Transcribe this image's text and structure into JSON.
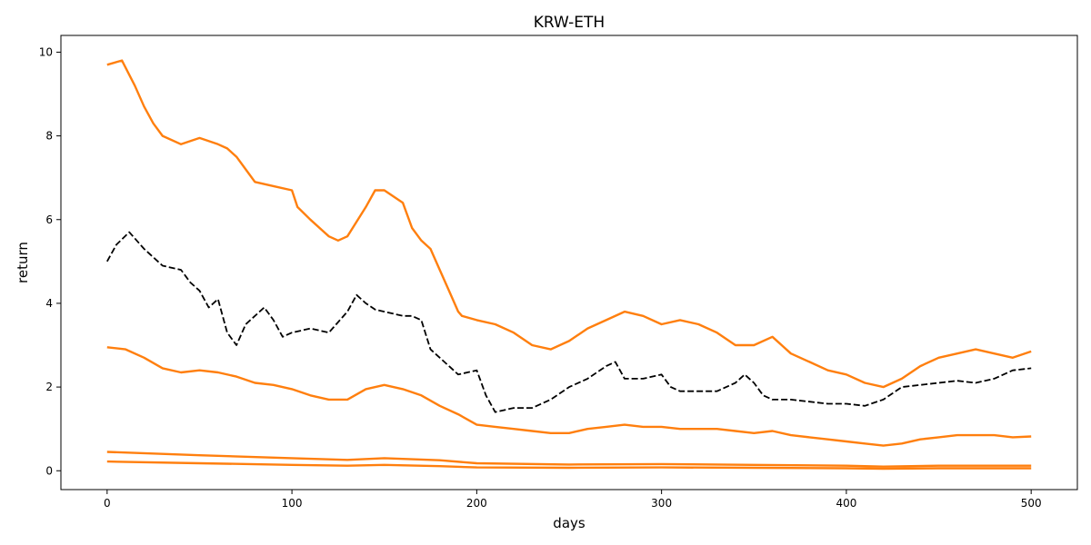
{
  "chart_data": {
    "type": "line",
    "title": "KRW-ETH",
    "xlabel": "days",
    "ylabel": "return",
    "xlim": [
      -25,
      525
    ],
    "ylim": [
      -0.45,
      10.4
    ],
    "xticks": [
      0,
      100,
      200,
      300,
      400,
      500
    ],
    "yticks": [
      0,
      2,
      4,
      6,
      8,
      10
    ],
    "grid": false,
    "colors": {
      "band": "#ff7f0e",
      "center": "#000000"
    },
    "series": [
      {
        "style": "solid",
        "color": "#ff7f0e",
        "x": [
          0,
          8,
          15,
          20,
          25,
          30,
          40,
          50,
          60,
          65,
          70,
          75,
          80,
          90,
          100,
          103,
          110,
          120,
          125,
          130,
          140,
          145,
          150,
          160,
          165,
          170,
          175,
          180,
          185,
          190,
          192,
          200,
          210,
          220,
          230,
          240,
          250,
          260,
          270,
          280,
          290,
          300,
          310,
          320,
          330,
          340,
          350,
          360,
          370,
          380,
          390,
          400,
          410,
          420,
          430,
          440,
          450,
          460,
          470,
          480,
          490,
          500
        ],
        "y": [
          9.7,
          9.8,
          9.2,
          8.7,
          8.3,
          8.0,
          7.8,
          7.95,
          7.8,
          7.7,
          7.5,
          7.2,
          6.9,
          6.8,
          6.7,
          6.3,
          6.0,
          5.6,
          5.5,
          5.6,
          6.3,
          6.7,
          6.7,
          6.4,
          5.8,
          5.5,
          5.3,
          4.8,
          4.3,
          3.8,
          3.7,
          3.6,
          3.5,
          3.3,
          3.0,
          2.9,
          3.1,
          3.4,
          3.6,
          3.8,
          3.7,
          3.5,
          3.6,
          3.5,
          3.3,
          3.0,
          3.0,
          3.2,
          2.8,
          2.6,
          2.4,
          2.3,
          2.1,
          2.0,
          2.2,
          2.5,
          2.7,
          2.8,
          2.9,
          2.8,
          2.7,
          2.85
        ]
      },
      {
        "style": "dashed",
        "color": "#000000",
        "x": [
          0,
          5,
          12,
          20,
          30,
          40,
          45,
          50,
          55,
          60,
          65,
          70,
          75,
          85,
          90,
          95,
          100,
          110,
          120,
          130,
          135,
          140,
          145,
          150,
          160,
          165,
          170,
          175,
          180,
          185,
          190,
          200,
          205,
          210,
          220,
          230,
          240,
          250,
          260,
          270,
          275,
          280,
          290,
          300,
          305,
          310,
          320,
          330,
          340,
          345,
          350,
          355,
          360,
          370,
          380,
          390,
          400,
          410,
          420,
          430,
          440,
          450,
          460,
          470,
          480,
          490,
          500
        ],
        "y": [
          5.0,
          5.4,
          5.7,
          5.3,
          4.9,
          4.8,
          4.5,
          4.3,
          3.9,
          4.1,
          3.3,
          3.0,
          3.5,
          3.9,
          3.6,
          3.2,
          3.3,
          3.4,
          3.3,
          3.8,
          4.2,
          4.0,
          3.85,
          3.8,
          3.7,
          3.7,
          3.6,
          2.9,
          2.7,
          2.5,
          2.3,
          2.4,
          1.8,
          1.4,
          1.5,
          1.5,
          1.7,
          2.0,
          2.2,
          2.5,
          2.6,
          2.2,
          2.2,
          2.3,
          2.0,
          1.9,
          1.9,
          1.9,
          2.1,
          2.3,
          2.1,
          1.8,
          1.7,
          1.7,
          1.65,
          1.6,
          1.6,
          1.55,
          1.7,
          2.0,
          2.05,
          2.1,
          2.15,
          2.1,
          2.2,
          2.4,
          2.45
        ]
      },
      {
        "style": "solid",
        "color": "#ff7f0e",
        "x": [
          0,
          10,
          20,
          30,
          40,
          50,
          60,
          70,
          80,
          90,
          100,
          110,
          120,
          130,
          140,
          150,
          160,
          170,
          180,
          190,
          200,
          210,
          220,
          230,
          240,
          250,
          260,
          270,
          280,
          290,
          300,
          310,
          320,
          330,
          340,
          350,
          360,
          370,
          380,
          390,
          400,
          410,
          420,
          430,
          440,
          450,
          460,
          470,
          480,
          490,
          500
        ],
        "y": [
          2.95,
          2.9,
          2.7,
          2.45,
          2.35,
          2.4,
          2.35,
          2.25,
          2.1,
          2.05,
          1.95,
          1.8,
          1.7,
          1.7,
          1.95,
          2.05,
          1.95,
          1.8,
          1.55,
          1.35,
          1.1,
          1.05,
          1.0,
          0.95,
          0.9,
          0.9,
          1.0,
          1.05,
          1.1,
          1.05,
          1.05,
          1.0,
          1.0,
          1.0,
          0.95,
          0.9,
          0.95,
          0.85,
          0.8,
          0.75,
          0.7,
          0.65,
          0.6,
          0.65,
          0.75,
          0.8,
          0.85,
          0.85,
          0.85,
          0.8,
          0.82
        ]
      },
      {
        "style": "solid",
        "color": "#ff7f0e",
        "x": [
          0,
          50,
          100,
          130,
          150,
          180,
          200,
          250,
          300,
          350,
          400,
          420,
          450,
          500
        ],
        "y": [
          0.45,
          0.37,
          0.3,
          0.26,
          0.3,
          0.25,
          0.18,
          0.15,
          0.16,
          0.14,
          0.12,
          0.1,
          0.12,
          0.12
        ]
      },
      {
        "style": "solid",
        "color": "#ff7f0e",
        "x": [
          0,
          50,
          100,
          130,
          150,
          180,
          200,
          250,
          300,
          350,
          400,
          420,
          450,
          500
        ],
        "y": [
          0.22,
          0.18,
          0.14,
          0.12,
          0.14,
          0.11,
          0.08,
          0.07,
          0.08,
          0.07,
          0.06,
          0.05,
          0.06,
          0.06
        ]
      }
    ]
  }
}
